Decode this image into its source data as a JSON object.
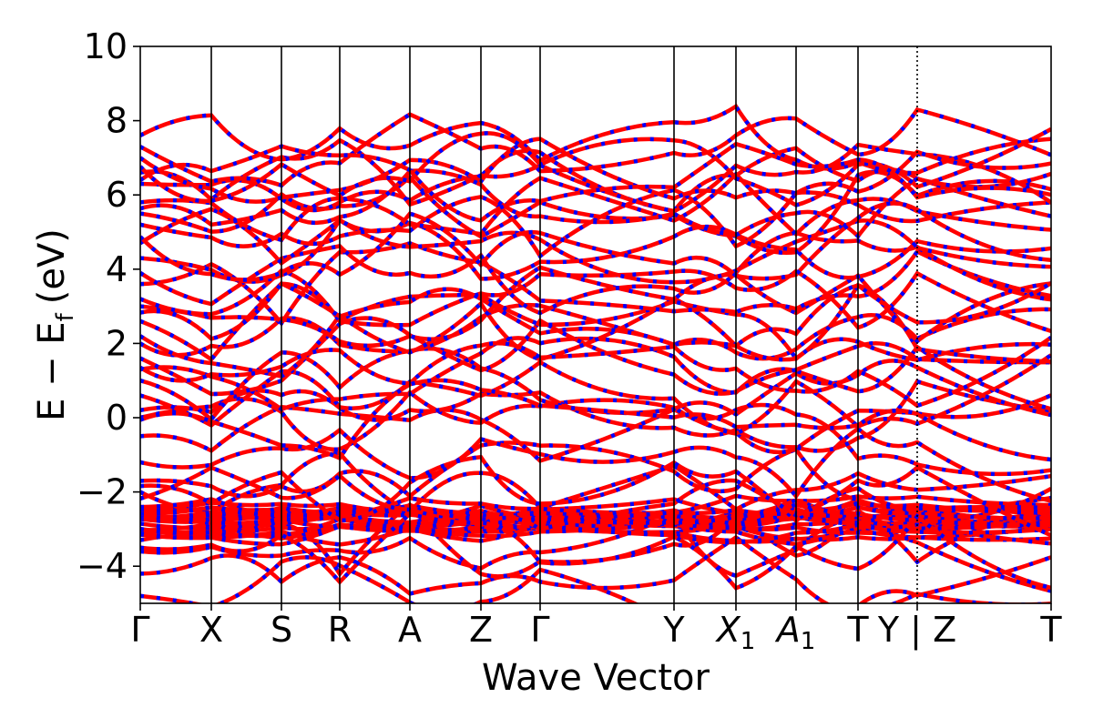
{
  "chart_data": {
    "type": "line",
    "xlabel": "Wave Vector",
    "ylabel": {
      "main": "E − E",
      "sub": "f",
      "unit": "(eV)"
    },
    "ylim": [
      -5,
      10
    ],
    "yticks": [
      {
        "value": 10,
        "label": "10"
      },
      {
        "value": 8,
        "label": "8"
      },
      {
        "value": 6,
        "label": "6"
      },
      {
        "value": 4,
        "label": "4"
      },
      {
        "value": 2,
        "label": "2"
      },
      {
        "value": 0,
        "label": "0"
      },
      {
        "value": -2,
        "label": "−2"
      },
      {
        "value": -4,
        "label": "−4"
      }
    ],
    "high_symmetry_points": [
      {
        "label": "Γ",
        "sub": "",
        "italic": false
      },
      {
        "label": "X",
        "sub": "",
        "italic": false
      },
      {
        "label": "S",
        "sub": "",
        "italic": false
      },
      {
        "label": "R",
        "sub": "",
        "italic": false
      },
      {
        "label": "A",
        "sub": "",
        "italic": false
      },
      {
        "label": "Z",
        "sub": "",
        "italic": false
      },
      {
        "label": "Γ",
        "sub": "",
        "italic": false
      },
      {
        "label": "Y",
        "sub": "",
        "italic": false
      },
      {
        "label": "X",
        "sub": "1",
        "italic": true
      },
      {
        "label": "A",
        "sub": "1",
        "italic": true
      },
      {
        "label": "T",
        "sub": "",
        "italic": false
      },
      {
        "label": "Y | Z",
        "sub": "",
        "italic": false
      },
      {
        "label": "T",
        "sub": "",
        "italic": false
      }
    ],
    "series": [
      {
        "style": "solid",
        "color": "#ff0000"
      },
      {
        "style": "dashed",
        "color": "#0000ff"
      }
    ],
    "band_energies_at_gamma": [
      -4.8,
      -4.2,
      -3.6,
      -3.3,
      -3.05,
      -2.85,
      -2.6,
      -2.45,
      -2.0,
      -1.7,
      -1.2,
      -0.5,
      0.0,
      0.2,
      0.6,
      1.0,
      1.3,
      1.6,
      2.0,
      2.2,
      2.6,
      3.0,
      3.2,
      3.6,
      3.9,
      4.3,
      4.7,
      5.2,
      5.5,
      5.8,
      6.3,
      6.6,
      7.0,
      7.3,
      7.6
    ],
    "flat_band_region": [
      -3.3,
      -2.4
    ],
    "grid": false
  }
}
